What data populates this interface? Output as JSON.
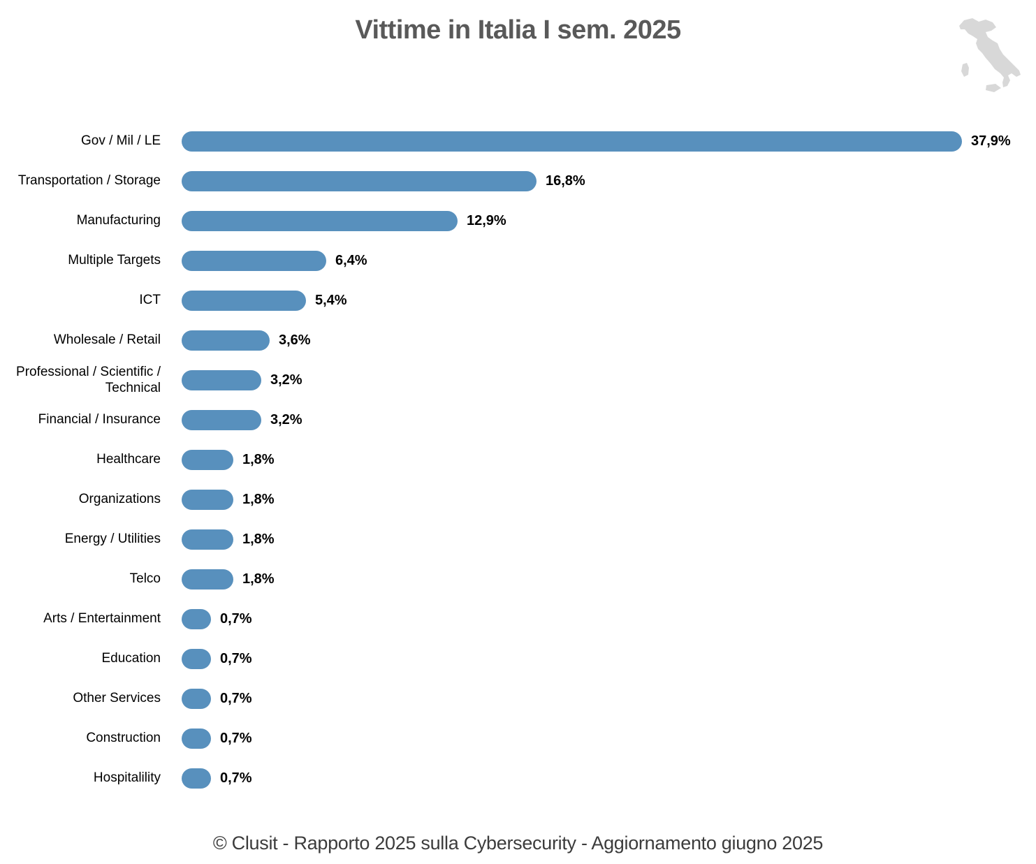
{
  "title": "Vittime in Italia I sem. 2025",
  "footer": "© Clusit - Rapporto 2025 sulla Cybersecurity - Aggiornamento giugno 2025",
  "colors": {
    "bar": "#5890BD",
    "title_text": "#595959",
    "map_fill": "#D8D8D8"
  },
  "icons": {
    "italy_map": "italy-map-icon"
  },
  "chart_data": {
    "type": "bar",
    "orientation": "horizontal",
    "title": "Vittime in Italia I sem. 2025",
    "categories": [
      "Gov / Mil / LE",
      "Transportation / Storage",
      "Manufacturing",
      "Multiple Targets",
      "ICT",
      "Wholesale / Retail",
      "Professional / Scientific / Technical",
      "Financial / Insurance",
      "Healthcare",
      "Organizations",
      "Energy / Utilities",
      "Telco",
      "Arts / Entertainment",
      "Education",
      "Other Services",
      "Construction",
      "Hospitalility"
    ],
    "values": [
      37.9,
      16.8,
      12.9,
      6.4,
      5.4,
      3.6,
      3.2,
      3.2,
      1.8,
      1.8,
      1.8,
      1.8,
      0.7,
      0.7,
      0.7,
      0.7,
      0.7
    ],
    "value_labels": [
      "37,9%",
      "16,8%",
      "12,9%",
      "6,4%",
      "5,4%",
      "3,6%",
      "3,2%",
      "3,2%",
      "1,8%",
      "1,8%",
      "1,8%",
      "1,8%",
      "0,7%",
      "0,7%",
      "0,7%",
      "0,7%",
      "0,7%"
    ],
    "xlabel": "",
    "ylabel": "",
    "xlim": [
      0,
      40
    ],
    "grid": false,
    "legend": false,
    "data_labels": true
  }
}
